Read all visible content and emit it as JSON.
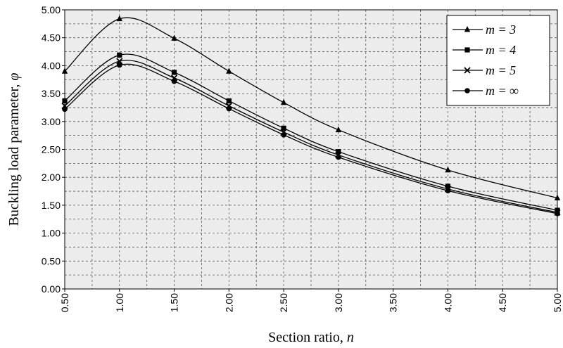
{
  "chart_data": {
    "type": "line",
    "xlabel": "Section ratio, ",
    "xlabel_var": "n",
    "ylabel": "Buckling load parameter, ",
    "ylabel_var": "φ",
    "xlim": [
      0.5,
      5.0
    ],
    "ylim": [
      0.0,
      5.0
    ],
    "x_major_step": 0.5,
    "x_minor_step": 0.25,
    "y_major_step": 0.5,
    "y_minor_step": 0.25,
    "x_tick_labels": [
      "0.50",
      "1.00",
      "1.50",
      "2.00",
      "2.50",
      "3.00",
      "3.50",
      "4.00",
      "4.50",
      "5.00"
    ],
    "y_tick_labels": [
      "0.00",
      "0.50",
      "1.00",
      "1.50",
      "2.00",
      "2.50",
      "3.00",
      "3.50",
      "4.00",
      "4.50",
      "5.00"
    ],
    "grid": true,
    "plot_background": "#ececec",
    "legend_position": "top-right",
    "series": [
      {
        "name": "m = 3",
        "marker": "triangle",
        "x": [
          0.5,
          1.0,
          1.5,
          2.0,
          2.5,
          3.0,
          4.0,
          5.0
        ],
        "values": [
          3.9,
          4.84,
          4.49,
          3.9,
          3.34,
          2.85,
          2.13,
          1.63
        ]
      },
      {
        "name": "m = 4",
        "marker": "square",
        "x": [
          0.5,
          1.0,
          1.5,
          2.0,
          2.5,
          3.0,
          4.0,
          5.0
        ],
        "values": [
          3.37,
          4.19,
          3.88,
          3.37,
          2.88,
          2.46,
          1.84,
          1.41
        ]
      },
      {
        "name": "m = 5",
        "marker": "cross",
        "x": [
          0.5,
          1.0,
          1.5,
          2.0,
          2.5,
          3.0,
          4.0,
          5.0
        ],
        "values": [
          3.28,
          4.08,
          3.78,
          3.28,
          2.81,
          2.4,
          1.79,
          1.37
        ]
      },
      {
        "name": "m = ∞",
        "marker": "circle",
        "x": [
          0.5,
          1.0,
          1.5,
          2.0,
          2.5,
          3.0,
          4.0,
          5.0
        ],
        "values": [
          3.22,
          4.01,
          3.72,
          3.23,
          2.76,
          2.36,
          1.76,
          1.35
        ]
      }
    ]
  }
}
